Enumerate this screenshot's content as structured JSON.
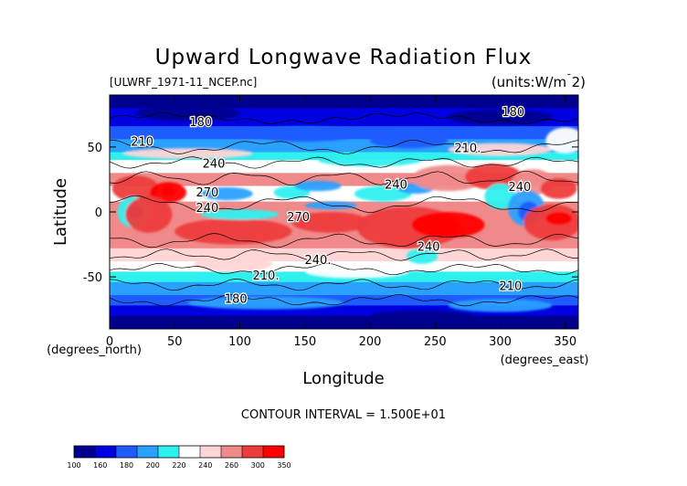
{
  "chart_data": {
    "type": "heatmap",
    "title": "Upward Longwave Radiation Flux",
    "source_label": "[ULWRF_1971-11_NCEP.nc]",
    "units_label": "(units:W/m^2)",
    "xlabel": "Longitude",
    "ylabel": "Latitude",
    "x_unit_label": "(degrees_east)",
    "y_unit_label": "(degrees_north)",
    "xlim": [
      0,
      360
    ],
    "ylim": [
      -90,
      90
    ],
    "x_ticks": [
      0,
      50,
      100,
      150,
      200,
      250,
      300,
      350
    ],
    "y_ticks": [
      -50,
      0,
      50
    ],
    "contour_interval_label": "CONTOUR INTERVAL = 1.500E+01",
    "colorbar": {
      "levels": [
        100,
        160,
        180,
        200,
        220,
        240,
        260,
        300,
        350
      ],
      "colors": [
        "#00008f",
        "#0000e0",
        "#1e5cff",
        "#2aa0ff",
        "#2ef0ef",
        "#ffffff",
        "#ffd5d5",
        "#f08a8a",
        "#ee3b3b",
        "#ff0000"
      ]
    },
    "contour_labels": [
      {
        "text": "180",
        "lon": 310,
        "lat": 74
      },
      {
        "text": "180",
        "lon": 70,
        "lat": 66
      },
      {
        "text": "210",
        "lon": 25,
        "lat": 51
      },
      {
        "text": "210.",
        "lon": 275,
        "lat": 46
      },
      {
        "text": "240",
        "lon": 80,
        "lat": 34
      },
      {
        "text": "240",
        "lon": 220,
        "lat": 18
      },
      {
        "text": "240",
        "lon": 315,
        "lat": 16
      },
      {
        "text": "270",
        "lon": 75,
        "lat": 12
      },
      {
        "text": "240",
        "lon": 75,
        "lat": 0
      },
      {
        "text": "270",
        "lon": 145,
        "lat": -7
      },
      {
        "text": "240.",
        "lon": 160,
        "lat": -40
      },
      {
        "text": "240",
        "lon": 245,
        "lat": -30
      },
      {
        "text": "210.",
        "lon": 120,
        "lat": -52
      },
      {
        "text": "210",
        "lon": 308,
        "lat": -60
      },
      {
        "text": "180",
        "lon": 97,
        "lat": -70
      }
    ]
  }
}
